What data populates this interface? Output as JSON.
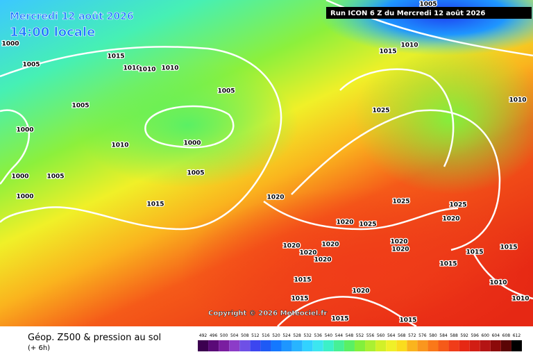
{
  "header": {
    "date": "Mercredi 12 août 2026",
    "time": "14:00 locale",
    "run": "Run ICON 6 Z du Mercredi 12 août 2026"
  },
  "copyright": "Copyright © 2026 Meteociel.fr",
  "footer": {
    "title": "Géop. Z500 & pression au sol",
    "step": "(+ 6h)"
  },
  "isobar_labels": [
    "1000",
    "1005",
    "1015",
    "1010",
    "1010",
    "1010",
    "1005",
    "1005",
    "1000",
    "1010",
    "1000",
    "1005",
    "1005",
    "1000",
    "1000",
    "1015",
    "1005",
    "1010",
    "1015",
    "1025",
    "1010",
    "1020",
    "1025",
    "1025",
    "1020",
    "1025",
    "1020",
    "1020",
    "1020",
    "1020",
    "1020",
    "1020",
    "1020",
    "1015",
    "1015",
    "1015",
    "1010",
    "1015",
    "1020",
    "1015",
    "1010",
    "1015",
    "1015"
  ],
  "scale": {
    "values": [
      492,
      496,
      500,
      504,
      508,
      512,
      516,
      520,
      524,
      528,
      532,
      536,
      540,
      544,
      548,
      552,
      556,
      560,
      564,
      568,
      572,
      576,
      580,
      584,
      588,
      592,
      596,
      600,
      604,
      608,
      612
    ],
    "colors": [
      "#3c0050",
      "#5a0a78",
      "#7a1ea0",
      "#8c3cc8",
      "#6e50e6",
      "#3c46f0",
      "#1e5af5",
      "#1478ff",
      "#1e96ff",
      "#28b4ff",
      "#32d2ff",
      "#3ce6f0",
      "#3cf0c8",
      "#46f096",
      "#5af064",
      "#82f03c",
      "#aaf032",
      "#d2f028",
      "#f0f028",
      "#fadc1e",
      "#fab41e",
      "#fa961e",
      "#fa7819",
      "#f55a19",
      "#f03c19",
      "#e62814",
      "#d21e14",
      "#b41414",
      "#8c0a0a",
      "#5a0505",
      "#000000"
    ]
  }
}
